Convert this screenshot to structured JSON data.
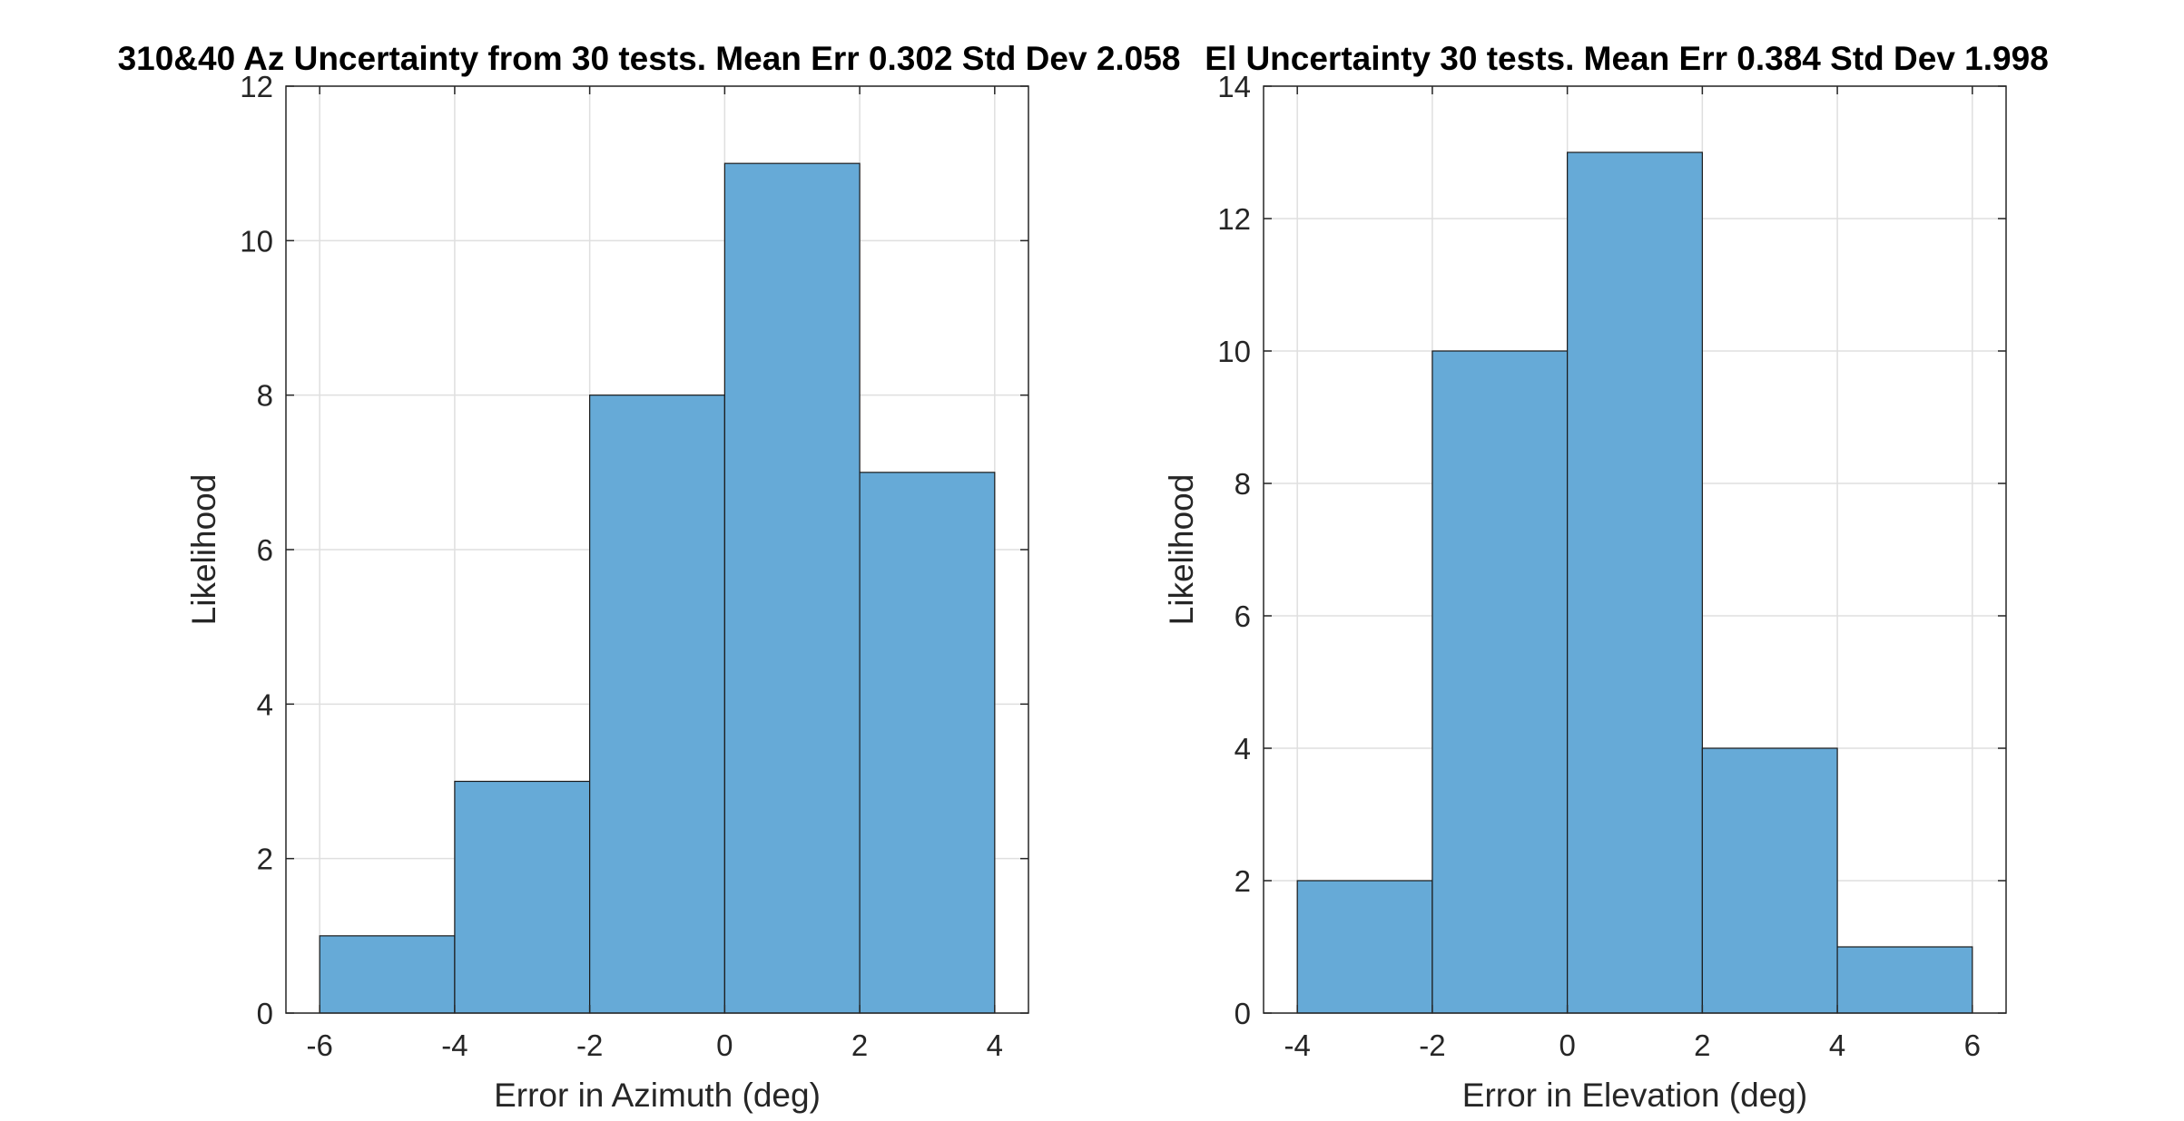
{
  "chart_data": [
    {
      "type": "bar",
      "title": "310&40 Az Uncertainty from 30 tests. Mean Err 0.302 Std Dev 2.058",
      "xlabel": "Error in Azimuth (deg)",
      "ylabel": "Likelihood",
      "xlim": [
        -6.5,
        4.5
      ],
      "ylim": [
        0,
        12
      ],
      "xticks": [
        -6,
        -4,
        -2,
        0,
        2,
        4
      ],
      "yticks": [
        0,
        2,
        4,
        6,
        8,
        10,
        12
      ],
      "bin_edges": [
        -6,
        -4,
        -2,
        0,
        2,
        4
      ],
      "values": [
        1,
        3,
        8,
        11,
        7
      ],
      "bar_color": "#66aad7",
      "grid": true
    },
    {
      "type": "bar",
      "title": "El Uncertainty 30 tests. Mean Err 0.384 Std Dev 1.998",
      "xlabel": "Error in Elevation (deg)",
      "ylabel": "Likelihood",
      "xlim": [
        -4.5,
        6.5
      ],
      "ylim": [
        0,
        14
      ],
      "xticks": [
        -4,
        -2,
        0,
        2,
        4,
        6
      ],
      "yticks": [
        0,
        2,
        4,
        6,
        8,
        10,
        12,
        14
      ],
      "bin_edges": [
        -4,
        -2,
        0,
        2,
        4,
        6
      ],
      "values": [
        2,
        10,
        13,
        4,
        1
      ],
      "bar_color": "#66aad7",
      "grid": true
    }
  ]
}
